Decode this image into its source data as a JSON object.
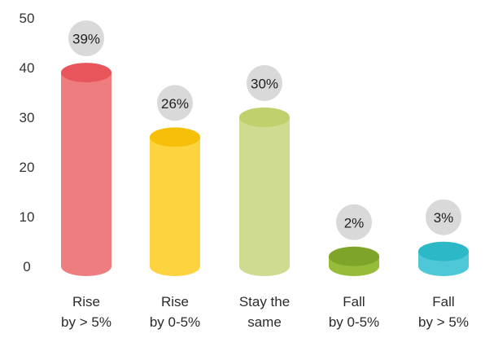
{
  "chart_data": {
    "type": "bar",
    "style": "3d-cylinder",
    "categories": [
      [
        "Rise",
        "by > 5%"
      ],
      [
        "Rise",
        "by 0-5%"
      ],
      [
        "Stay the",
        "same"
      ],
      [
        "Fall",
        "by 0-5%"
      ],
      [
        "Fall",
        "by > 5%"
      ]
    ],
    "values": [
      39,
      26,
      30,
      2,
      3
    ],
    "data_labels": [
      "39%",
      "26%",
      "30%",
      "2%",
      "3%"
    ],
    "yticks": [
      "0",
      "10",
      "20",
      "30",
      "40",
      "50"
    ],
    "ylim": [
      0,
      50
    ],
    "grid": false,
    "colors": [
      {
        "body": "#ee7d80",
        "top": "#e8555a"
      },
      {
        "body": "#fdd43f",
        "top": "#f6c00a"
      },
      {
        "body": "#cfdb91",
        "top": "#c0d06c"
      },
      {
        "body": "#96bc3a",
        "top": "#7ea42a"
      },
      {
        "body": "#4ec8d6",
        "top": "#2db8c7"
      }
    ],
    "label_bubble_color": "#d9d9d9"
  }
}
